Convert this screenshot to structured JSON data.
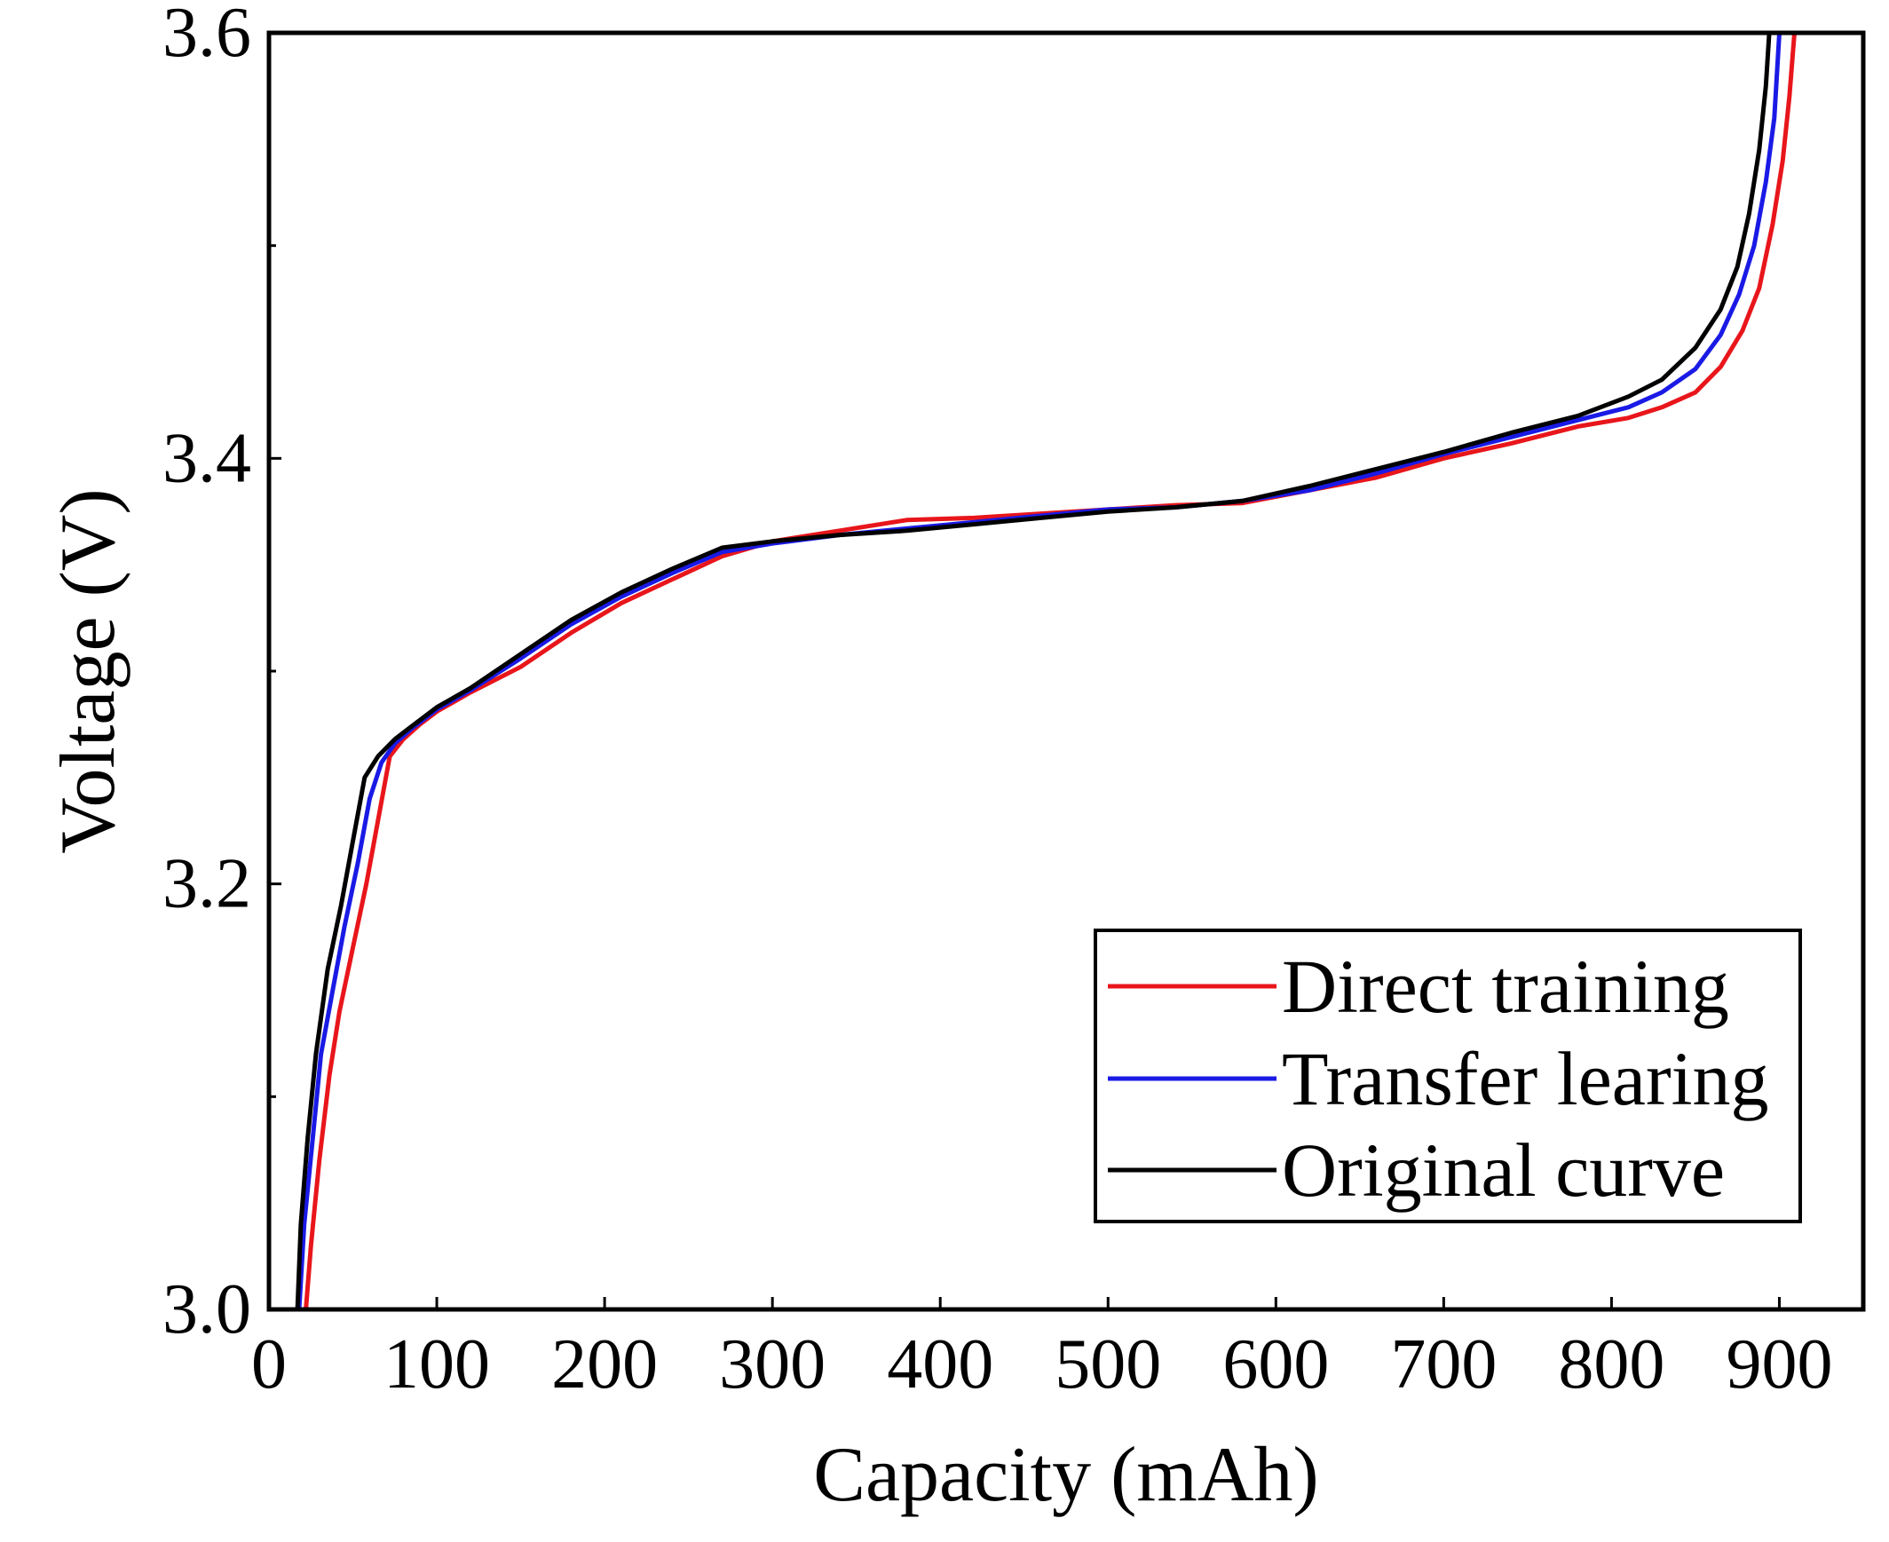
{
  "chart_data": {
    "type": "line",
    "title": "",
    "xlabel": "Capacity (mAh)",
    "ylabel": "Voltage (V)",
    "xlim": [
      0,
      950
    ],
    "ylim": [
      3.0,
      3.6
    ],
    "xticks": [
      0,
      100,
      200,
      300,
      400,
      500,
      600,
      700,
      800,
      900
    ],
    "xtick_labels": [
      "0",
      "100",
      "200",
      "300",
      "400",
      "500",
      "600",
      "700",
      "800",
      "900"
    ],
    "yticks": [
      3.0,
      3.2,
      3.4,
      3.6
    ],
    "ytick_labels": [
      "3.0",
      "3.2",
      "3.4",
      "3.6"
    ],
    "y_minor_ticks": [
      3.1,
      3.3,
      3.5
    ],
    "grid": false,
    "legend_position": "bottom-right",
    "series": [
      {
        "name": "Direct training",
        "color": "#e8161b",
        "points": [
          [
            22,
            3.0
          ],
          [
            25,
            3.03
          ],
          [
            30,
            3.07
          ],
          [
            36,
            3.11
          ],
          [
            42,
            3.14
          ],
          [
            50,
            3.17
          ],
          [
            58,
            3.2
          ],
          [
            65,
            3.23
          ],
          [
            72,
            3.26
          ],
          [
            80,
            3.268
          ],
          [
            90,
            3.275
          ],
          [
            100,
            3.281
          ],
          [
            120,
            3.29
          ],
          [
            150,
            3.302
          ],
          [
            180,
            3.318
          ],
          [
            210,
            3.332
          ],
          [
            240,
            3.343
          ],
          [
            270,
            3.354
          ],
          [
            300,
            3.361
          ],
          [
            340,
            3.366
          ],
          [
            380,
            3.371
          ],
          [
            420,
            3.372
          ],
          [
            460,
            3.374
          ],
          [
            500,
            3.376
          ],
          [
            540,
            3.378
          ],
          [
            580,
            3.379
          ],
          [
            620,
            3.385
          ],
          [
            660,
            3.391
          ],
          [
            700,
            3.4
          ],
          [
            740,
            3.407
          ],
          [
            780,
            3.415
          ],
          [
            810,
            3.419
          ],
          [
            830,
            3.424
          ],
          [
            850,
            3.431
          ],
          [
            865,
            3.443
          ],
          [
            878,
            3.46
          ],
          [
            888,
            3.48
          ],
          [
            896,
            3.51
          ],
          [
            902,
            3.54
          ],
          [
            906,
            3.57
          ],
          [
            909,
            3.6
          ]
        ]
      },
      {
        "name": "Transfer learing",
        "color": "#1a1ae6",
        "points": [
          [
            18,
            3.0
          ],
          [
            21,
            3.04
          ],
          [
            26,
            3.08
          ],
          [
            31,
            3.12
          ],
          [
            38,
            3.15
          ],
          [
            45,
            3.18
          ],
          [
            53,
            3.21
          ],
          [
            60,
            3.24
          ],
          [
            67,
            3.257
          ],
          [
            75,
            3.266
          ],
          [
            85,
            3.273
          ],
          [
            100,
            3.282
          ],
          [
            120,
            3.291
          ],
          [
            150,
            3.306
          ],
          [
            180,
            3.322
          ],
          [
            210,
            3.335
          ],
          [
            240,
            3.346
          ],
          [
            270,
            3.356
          ],
          [
            300,
            3.36
          ],
          [
            340,
            3.364
          ],
          [
            380,
            3.367
          ],
          [
            420,
            3.37
          ],
          [
            460,
            3.373
          ],
          [
            500,
            3.376
          ],
          [
            540,
            3.377
          ],
          [
            580,
            3.38
          ],
          [
            620,
            3.385
          ],
          [
            660,
            3.393
          ],
          [
            700,
            3.402
          ],
          [
            740,
            3.41
          ],
          [
            780,
            3.418
          ],
          [
            810,
            3.424
          ],
          [
            830,
            3.431
          ],
          [
            850,
            3.442
          ],
          [
            865,
            3.458
          ],
          [
            876,
            3.477
          ],
          [
            885,
            3.5
          ],
          [
            892,
            3.53
          ],
          [
            897,
            3.56
          ],
          [
            900,
            3.6
          ]
        ]
      },
      {
        "name": "Original curve",
        "color": "#000000",
        "points": [
          [
            17,
            3.0
          ],
          [
            19,
            3.04
          ],
          [
            23,
            3.08
          ],
          [
            28,
            3.12
          ],
          [
            35,
            3.16
          ],
          [
            43,
            3.19
          ],
          [
            50,
            3.22
          ],
          [
            57,
            3.25
          ],
          [
            65,
            3.26
          ],
          [
            75,
            3.268
          ],
          [
            85,
            3.274
          ],
          [
            100,
            3.283
          ],
          [
            120,
            3.292
          ],
          [
            150,
            3.308
          ],
          [
            180,
            3.324
          ],
          [
            210,
            3.337
          ],
          [
            240,
            3.348
          ],
          [
            270,
            3.358
          ],
          [
            300,
            3.361
          ],
          [
            340,
            3.364
          ],
          [
            380,
            3.366
          ],
          [
            420,
            3.369
          ],
          [
            460,
            3.372
          ],
          [
            500,
            3.375
          ],
          [
            540,
            3.377
          ],
          [
            580,
            3.38
          ],
          [
            620,
            3.387
          ],
          [
            660,
            3.395
          ],
          [
            700,
            3.403
          ],
          [
            740,
            3.412
          ],
          [
            780,
            3.42
          ],
          [
            810,
            3.429
          ],
          [
            830,
            3.437
          ],
          [
            850,
            3.452
          ],
          [
            865,
            3.47
          ],
          [
            875,
            3.49
          ],
          [
            882,
            3.515
          ],
          [
            888,
            3.545
          ],
          [
            892,
            3.575
          ],
          [
            894,
            3.6
          ]
        ]
      }
    ]
  }
}
